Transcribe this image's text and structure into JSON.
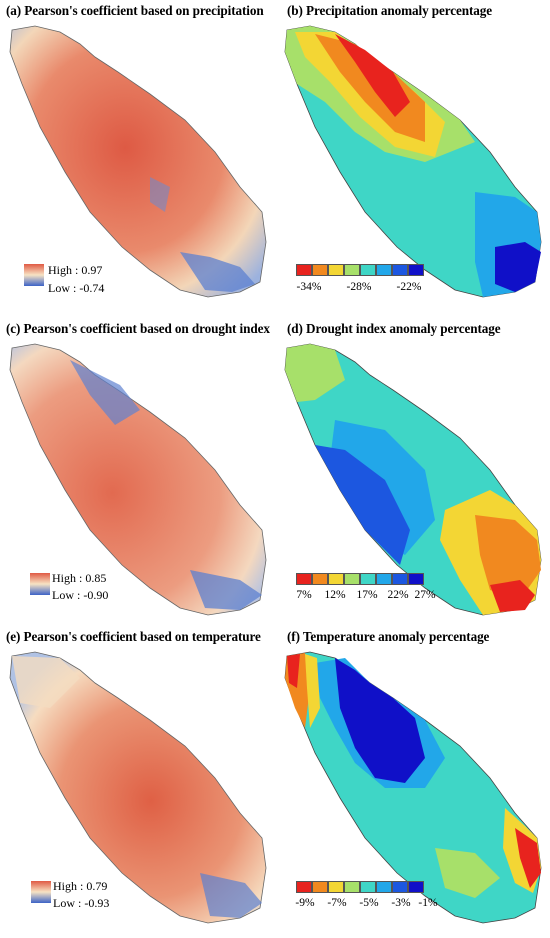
{
  "panels": {
    "a": {
      "title": "(a) Pearson's coefficient based on precipitation",
      "high": "High : 0.97",
      "low": "Low : -0.74"
    },
    "b": {
      "title": "(b) Precipitation anomaly percentage",
      "ticks": [
        "-34%",
        "-28%",
        "-22%"
      ]
    },
    "c": {
      "title": "(c) Pearson's coefficient based on drought index",
      "high": "High : 0.85",
      "low": "Low : -0.90"
    },
    "d": {
      "title": "(d) Drought index anomaly percentage",
      "ticks": [
        "7%",
        "12%",
        "17%",
        "22%",
        "27%"
      ]
    },
    "e": {
      "title": "(e) Pearson's coefficient based on temperature",
      "high": "High : 0.79",
      "low": "Low : -0.93"
    },
    "f": {
      "title": "(f) Temperature anomaly percentage",
      "ticks": [
        "-9%",
        "-7%",
        "-5%",
        "-3%",
        "-1%"
      ]
    }
  },
  "colors": {
    "gradient_high": "#e05a44",
    "gradient_mid": "#f7e3c4",
    "gradient_low": "#3d63c6",
    "class_scale": [
      "#e8231e",
      "#f1891f",
      "#f3d634",
      "#a7e06a",
      "#3fd6c6",
      "#22a7e9",
      "#1c57e0",
      "#1010c8"
    ]
  }
}
